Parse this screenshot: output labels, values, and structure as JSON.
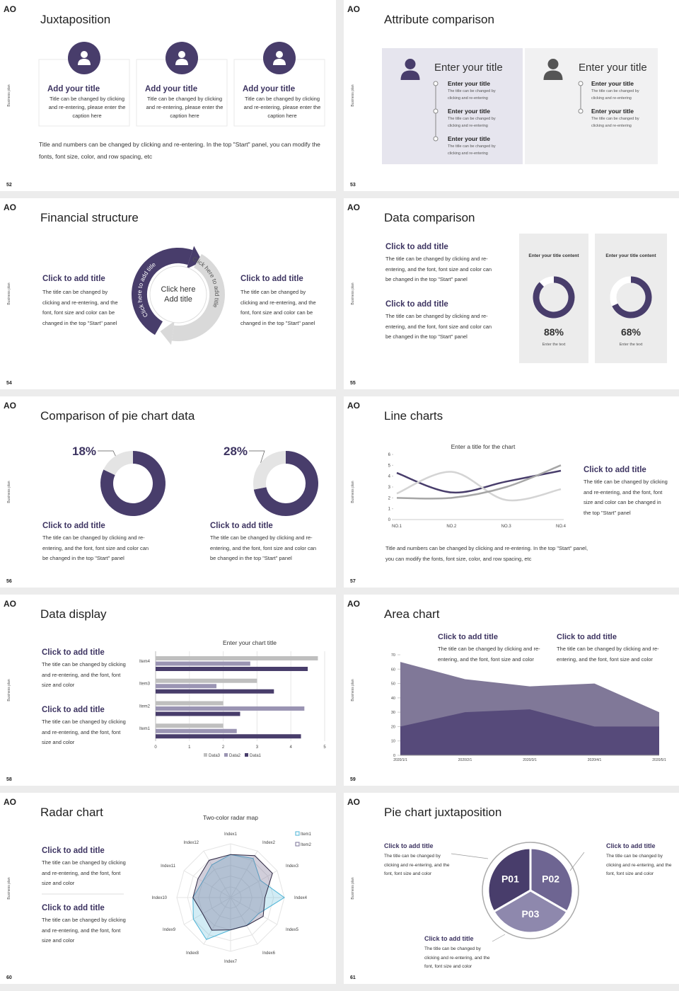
{
  "logo": "AO",
  "side_label": "Business plan",
  "slides": [
    {
      "page": "52",
      "title": "Juxtaposition",
      "cards": [
        {
          "title": "Add your title",
          "text": "Title can be changed by clicking and re-entering, please enter the caption here"
        },
        {
          "title": "Add your title",
          "text": "Title can be changed by clicking and re-entering, please enter the caption here"
        },
        {
          "title": "Add your title",
          "text": "Title can be changed by clicking and re-entering, please enter the caption here"
        }
      ],
      "note": "Title and numbers can be changed by clicking and re-entering. In the top \"Start\" panel, you can modify the fonts, font size, color, and row spacing, etc"
    },
    {
      "page": "53",
      "title": "Attribute comparison",
      "panels": [
        {
          "heading": "Enter your title",
          "items": [
            {
              "title": "Enter your title",
              "text": "The title can be changed by clicking and re-entering"
            },
            {
              "title": "Enter your title",
              "text": "The title can be changed by clicking and re-entering"
            },
            {
              "title": "Enter your title",
              "text": "The title can be changed by clicking and re-entering"
            }
          ]
        },
        {
          "heading": "Enter your title",
          "items": [
            {
              "title": "Enter your title",
              "text": "The title can be changed by clicking and re-entering"
            },
            {
              "title": "Enter your title",
              "text": "The title can be changed by clicking and re-entering"
            }
          ]
        }
      ]
    },
    {
      "page": "54",
      "title": "Financial structure",
      "left": {
        "title": "Click to add title",
        "text": "The title can be changed by clicking and re-entering, and the font, font size and color can be changed in the top \"Start\" panel"
      },
      "right": {
        "title": "Click to add title",
        "text": "The title can be changed by clicking and re-entering, and the font, font size and color can be changed in the top \"Start\" panel"
      },
      "center": "Click here Add title",
      "arc_labels": [
        "Click here to add title",
        "Click here to add title"
      ]
    },
    {
      "page": "55",
      "title": "Data comparison",
      "items": [
        {
          "title": "Click to add title",
          "text": "The title can be changed by clicking and re-entering, and the font, font size and color can be changed in the top \"Start\" panel"
        },
        {
          "title": "Click to add title",
          "text": "The title can be changed by clicking and re-entering, and the font, font size and color can be changed in the top \"Start\" panel"
        }
      ],
      "cards": [
        {
          "heading": "Enter your title content",
          "value": 88,
          "value_label": "88%",
          "caption": "Enter the text",
          "color": "#483d6b"
        },
        {
          "heading": "Enter your title content",
          "value": 68,
          "value_label": "68%",
          "caption": "Enter the text",
          "color": "#483d6b"
        }
      ]
    },
    {
      "page": "56",
      "title": "Comparison of pie chart data",
      "charts": [
        {
          "value": 18,
          "value_label": "18%",
          "color": "#e4e4e4",
          "rest_color": "#483d6b",
          "title": "Click to add title",
          "text": "The title can be changed by clicking and re-entering, and the font, font size and color can be changed in the top \"Start\" panel"
        },
        {
          "value": 28,
          "value_label": "28%",
          "color": "#e4e4e4",
          "rest_color": "#483d6b",
          "title": "Click to add title",
          "text": "The title can be changed by clicking and re-entering, and the font, font size and color can be changed in the top \"Start\" panel"
        }
      ]
    },
    {
      "page": "57",
      "title": "Line charts",
      "chart": {
        "type": "line",
        "title": "Enter a title for the chart",
        "categories": [
          "NO.1",
          "NO.2",
          "NO.3",
          "NO.4"
        ],
        "ylim": [
          0,
          6
        ],
        "yticks": [
          0,
          1,
          2,
          3,
          4,
          5,
          6
        ],
        "series": [
          {
            "color": "#483d6b",
            "values": [
              4.3,
              2.5,
              3.5,
              4.5
            ]
          },
          {
            "color": "#d4d4d4",
            "values": [
              2.4,
              4.4,
              1.8,
              2.8
            ]
          },
          {
            "color": "#a6a6a6",
            "values": [
              2,
              2,
              3,
              5
            ]
          }
        ]
      },
      "side": {
        "title": "Click to add title",
        "text": "The title can be changed by clicking and re-entering, and the font, font size and color can be changed in the top \"Start\" panel"
      },
      "note": "Title and numbers can be changed by clicking and re-entering. In the top \"Start\" panel, you can modify the fonts, font size, color, and row spacing, etc"
    },
    {
      "page": "58",
      "title": "Data display",
      "items": [
        {
          "title": "Click to add title",
          "text": "The title can be changed by clicking and re-entering, and the font, font size and color"
        },
        {
          "title": "Click to add title",
          "text": "The title can be changed by clicking and re-entering, and the font, font size and color"
        }
      ],
      "chart": {
        "type": "bar",
        "title": "Enter your chart title",
        "categories": [
          "Item1",
          "Item2",
          "Item3",
          "Item4"
        ],
        "xlim": [
          0,
          5
        ],
        "xticks": [
          0,
          1,
          2,
          3,
          4,
          5
        ],
        "grid": true,
        "series": [
          {
            "name": "Data3",
            "color": "#bfbfbf",
            "values": [
              2,
              2,
              3,
              4.8
            ]
          },
          {
            "name": "Data2",
            "color": "#9a94b3",
            "values": [
              2.4,
              4.4,
              1.8,
              2.8
            ]
          },
          {
            "name": "Data1",
            "color": "#483d6b",
            "values": [
              4.3,
              2.5,
              3.5,
              4.5
            ]
          }
        ]
      }
    },
    {
      "page": "59",
      "title": "Area chart",
      "items": [
        {
          "title": "Click to add title",
          "text": "The title can be changed by clicking and re-entering, and the font, font size and color"
        },
        {
          "title": "Click to add title",
          "text": "The title can be changed by clicking and re-entering, and the font, font size and color"
        }
      ],
      "chart": {
        "type": "area",
        "categories": [
          "2020/1/1",
          "2020/2/1",
          "2020/3/1",
          "2020/4/1",
          "2020/5/1"
        ],
        "ylim": [
          0,
          70
        ],
        "yticks": [
          0,
          10,
          20,
          30,
          40,
          50,
          60,
          70
        ],
        "series": [
          {
            "color": "#807898",
            "values": [
              65,
              53,
              48,
              50,
              30
            ]
          },
          {
            "color": "#564a7a",
            "values": [
              20,
              30,
              32,
              20,
              20
            ]
          }
        ]
      }
    },
    {
      "page": "60",
      "title": "Radar chart",
      "items": [
        {
          "title": "Click to add title",
          "text": "The title can be changed by clicking and re-entering, and the font, font size and color"
        },
        {
          "title": "Click to add title",
          "text": "The title can be changed by clicking and re-entering, and the font, font size and color"
        }
      ],
      "chart": {
        "type": "radar",
        "title": "Two-color radar map",
        "categories": [
          "Index1",
          "Index2",
          "Index3",
          "Index4",
          "Index5",
          "Index6",
          "Index7",
          "Index8",
          "Index9",
          "Index10",
          "Index11",
          "Index12"
        ],
        "rlim": [
          0,
          5
        ],
        "series": [
          {
            "name": "Item1",
            "color": "#4bb3d6",
            "values": [
              4,
              4.2,
              3.2,
              5,
              3,
              3,
              3,
              4.5,
              4,
              3.5,
              3,
              3.5
            ]
          },
          {
            "name": "Item2",
            "color": "#7a7296",
            "values": [
              4,
              4.5,
              4.5,
              3.2,
              3.5,
              3,
              3,
              3.5,
              3,
              3.5,
              3.5,
              4
            ]
          }
        ]
      }
    },
    {
      "page": "61",
      "title": "Pie chart juxtaposition",
      "segments": [
        "P01",
        "P02",
        "P03"
      ],
      "items": [
        {
          "title": "Click to add title",
          "text": "The title can be changed by clicking and re-entering, and the font, font size and color"
        },
        {
          "title": "Click to add title",
          "text": "The title can be changed by clicking and re-entering, and the font, font size and color"
        },
        {
          "title": "Click to add title",
          "text": "The title can be changed by clicking and re-entering, and the font, font size and color"
        }
      ]
    }
  ]
}
